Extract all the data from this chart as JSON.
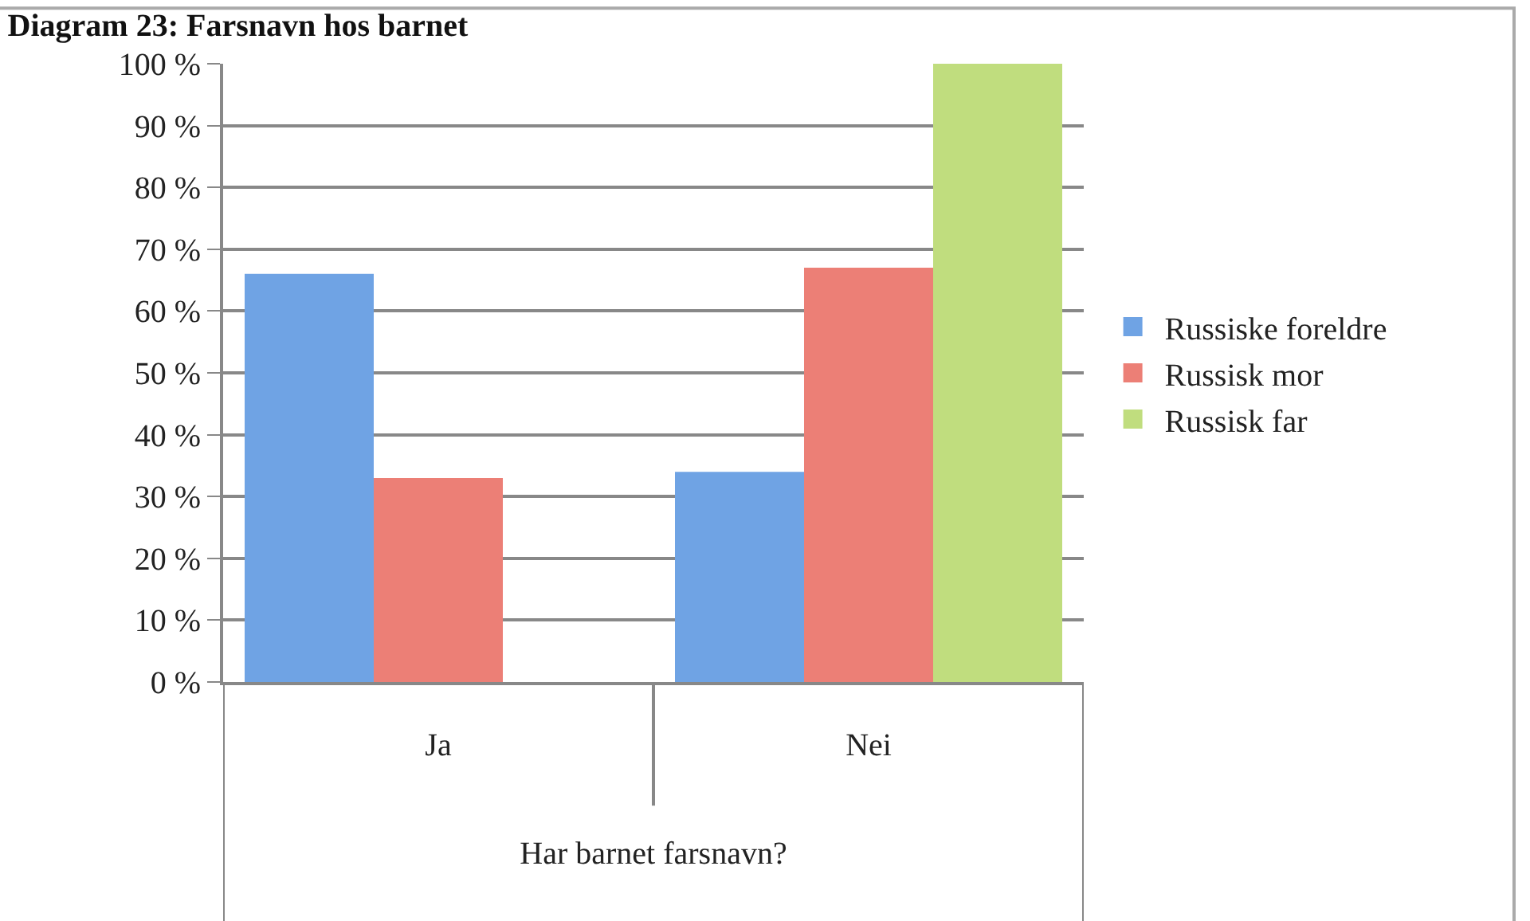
{
  "chart_data": {
    "type": "bar",
    "title": "Diagram 23: Farsnavn hos barnet",
    "xlabel": "Har barnet farsnavn?",
    "categories": [
      "Ja",
      "Nei"
    ],
    "series": [
      {
        "name": "Russiske foreldre",
        "color": "#6fa3e4",
        "values": [
          66,
          34
        ]
      },
      {
        "name": "Russisk mor",
        "color": "#ec7f76",
        "values": [
          33,
          67
        ]
      },
      {
        "name": "Russisk far",
        "color": "#c0dd7e",
        "values": [
          null,
          100
        ]
      }
    ],
    "ylim": [
      0,
      100
    ],
    "yticks": [
      {
        "value": 0,
        "label": "0 %"
      },
      {
        "value": 10,
        "label": "10 %"
      },
      {
        "value": 20,
        "label": "20 %"
      },
      {
        "value": 30,
        "label": "30 %"
      },
      {
        "value": 40,
        "label": "40 %"
      },
      {
        "value": 50,
        "label": "50 %"
      },
      {
        "value": 60,
        "label": "60 %"
      },
      {
        "value": 70,
        "label": "70 %"
      },
      {
        "value": 80,
        "label": "80 %"
      },
      {
        "value": 90,
        "label": "90 %"
      },
      {
        "value": 100,
        "label": "100 %"
      }
    ],
    "grid": "y",
    "legend": "right"
  }
}
